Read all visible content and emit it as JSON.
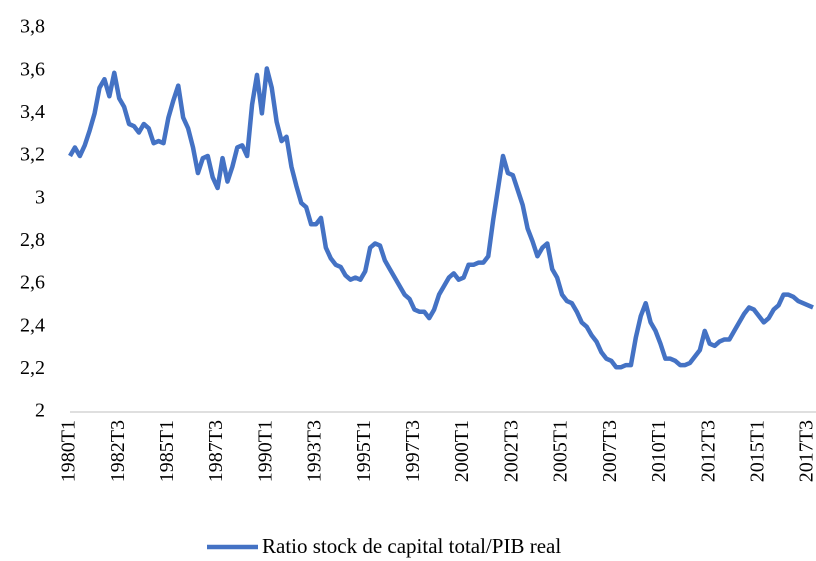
{
  "chart_data": {
    "type": "line",
    "categories": [
      "1980T1",
      null,
      null,
      null,
      null,
      null,
      null,
      null,
      null,
      null,
      "1982T3",
      null,
      null,
      null,
      null,
      null,
      null,
      null,
      null,
      null,
      "1985T1",
      null,
      null,
      null,
      null,
      null,
      null,
      null,
      null,
      null,
      "1987T3",
      null,
      null,
      null,
      null,
      null,
      null,
      null,
      null,
      null,
      "1990T1",
      null,
      null,
      null,
      null,
      null,
      null,
      null,
      null,
      null,
      "1993T3",
      null,
      null,
      null,
      null,
      null,
      null,
      null,
      null,
      null,
      "1995T1",
      null,
      null,
      null,
      null,
      null,
      null,
      null,
      null,
      null,
      "1997T3",
      null,
      null,
      null,
      null,
      null,
      null,
      null,
      null,
      null,
      "2000T1",
      null,
      null,
      null,
      null,
      null,
      null,
      null,
      null,
      null,
      "2002T3",
      null,
      null,
      null,
      null,
      null,
      null,
      null,
      null,
      null,
      "2005T1",
      null,
      null,
      null,
      null,
      null,
      null,
      null,
      null,
      null,
      "2007T3",
      null,
      null,
      null,
      null,
      null,
      null,
      null,
      null,
      null,
      "2010T1",
      null,
      null,
      null,
      null,
      null,
      null,
      null,
      null,
      null,
      "2012T3",
      null,
      null,
      null,
      null,
      null,
      null,
      null,
      null,
      null,
      "2015T1",
      null,
      null,
      null,
      null,
      null,
      null,
      null,
      null,
      null,
      "2017T3",
      null
    ],
    "series": [
      {
        "name": "Ratio stock de capital total/PIB real",
        "color": "#4472c4",
        "values": [
          3.2,
          3.24,
          3.2,
          3.25,
          3.32,
          3.4,
          3.52,
          3.56,
          3.48,
          3.59,
          3.47,
          3.43,
          3.35,
          3.34,
          3.31,
          3.35,
          3.33,
          3.26,
          3.27,
          3.26,
          3.38,
          3.46,
          3.53,
          3.38,
          3.33,
          3.24,
          3.12,
          3.19,
          3.2,
          3.1,
          3.05,
          3.19,
          3.08,
          3.15,
          3.24,
          3.25,
          3.2,
          3.44,
          3.58,
          3.4,
          3.61,
          3.52,
          3.36,
          3.27,
          3.29,
          3.15,
          3.06,
          2.98,
          2.96,
          2.88,
          2.88,
          2.91,
          2.77,
          2.72,
          2.69,
          2.68,
          2.64,
          2.62,
          2.63,
          2.62,
          2.66,
          2.77,
          2.79,
          2.78,
          2.71,
          2.67,
          2.63,
          2.59,
          2.55,
          2.53,
          2.48,
          2.47,
          2.47,
          2.44,
          2.48,
          2.55,
          2.59,
          2.63,
          2.65,
          2.62,
          2.63,
          2.69,
          2.69,
          2.7,
          2.7,
          2.73,
          2.9,
          3.05,
          3.2,
          3.12,
          3.11,
          3.04,
          2.97,
          2.86,
          2.8,
          2.73,
          2.77,
          2.79,
          2.67,
          2.63,
          2.55,
          2.52,
          2.51,
          2.47,
          2.42,
          2.4,
          2.36,
          2.33,
          2.28,
          2.25,
          2.24,
          2.21,
          2.21,
          2.22,
          2.22,
          2.35,
          2.45,
          2.51,
          2.42,
          2.38,
          2.32,
          2.25,
          2.25,
          2.24,
          2.22,
          2.22,
          2.23,
          2.26,
          2.29,
          2.38,
          2.32,
          2.31,
          2.33,
          2.34,
          2.34,
          2.38,
          2.42,
          2.46,
          2.49,
          2.48,
          2.45,
          2.42,
          2.44,
          2.48,
          2.5,
          2.55,
          2.55,
          2.54,
          2.52,
          2.51,
          2.5,
          2.49
        ]
      }
    ],
    "ylim": [
      2,
      3.8
    ],
    "yticks": [
      2,
      {
        "value": 2.2,
        "label": "2,2"
      },
      {
        "value": 2.4,
        "label": "2,4"
      },
      {
        "value": 2.6,
        "label": "2,6"
      },
      {
        "value": 2.8,
        "label": "2,8"
      },
      3,
      {
        "value": 3.2,
        "label": "3,2"
      },
      {
        "value": 3.4,
        "label": "3,4"
      },
      {
        "value": 3.6,
        "label": "3,6"
      },
      {
        "value": 3.8,
        "label": "3,8"
      }
    ],
    "legend": "bottom"
  }
}
